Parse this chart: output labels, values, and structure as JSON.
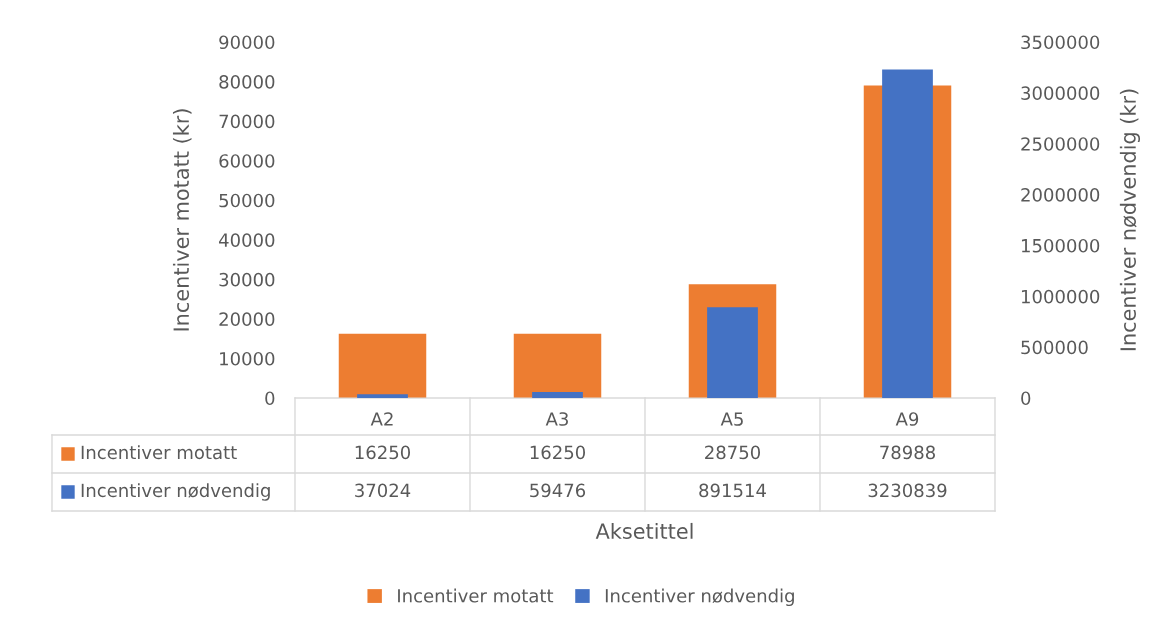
{
  "chart_data": {
    "type": "bar",
    "xlabel": "Aksetittel",
    "ylabel": "Incentiver motatt (kr)",
    "y2label": "Incentiver nødvendig (kr)",
    "categories": [
      "A2",
      "A3",
      "A5",
      "A9"
    ],
    "series": [
      {
        "name": "Incentiver motatt",
        "color": "#ed7d31",
        "values": [
          16250,
          16250,
          28750,
          78988
        ]
      },
      {
        "name": "Incentiver nødvendig",
        "color": "#4472c4",
        "axis": "y2",
        "values": [
          37024,
          59476,
          891514,
          3230839
        ]
      }
    ],
    "ylim": [
      0,
      90000
    ],
    "yticks": [
      0,
      10000,
      20000,
      30000,
      40000,
      50000,
      60000,
      70000,
      80000,
      90000
    ],
    "y2lim": [
      0,
      3500000
    ],
    "y2ticks": [
      0,
      500000,
      1000000,
      1500000,
      2000000,
      2500000,
      3000000,
      3500000
    ],
    "data_labels": true,
    "legend": "bottom",
    "grid": false
  }
}
